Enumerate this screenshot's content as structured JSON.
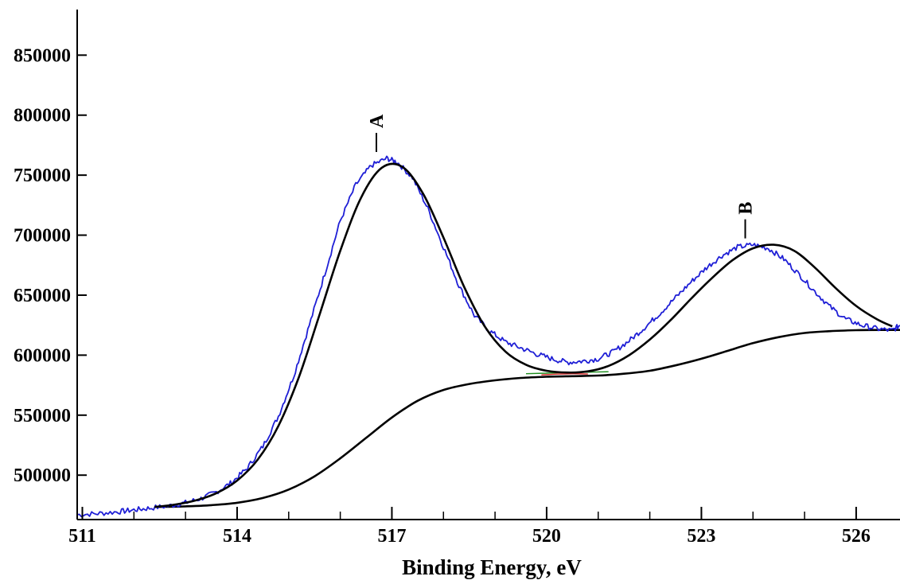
{
  "chart_data": {
    "type": "line",
    "title": "",
    "xlabel": "Binding Energy, eV",
    "ylabel": "",
    "xlim": [
      510.9,
      526.85
    ],
    "ylim": [
      463000,
      888000
    ],
    "x_ticks": [
      511,
      514,
      517,
      520,
      523,
      526
    ],
    "x_minor_step": 1,
    "y_ticks": [
      500000,
      550000,
      600000,
      650000,
      700000,
      750000,
      800000,
      850000
    ],
    "grid": false,
    "legend": "none",
    "colors": {
      "measured": "#1f1fd6",
      "fit": "#000000",
      "background": "#000000",
      "residual_green": "#1f8f1f",
      "residual_red": "#d42020"
    },
    "series": [
      {
        "key": "measured",
        "x": [
          510.9,
          511.3,
          511.7,
          512.0,
          512.3,
          512.7,
          513.0,
          513.3,
          513.6,
          513.9,
          514.2,
          514.5,
          514.8,
          515.1,
          515.4,
          515.7,
          516.0,
          516.3,
          516.6,
          516.9,
          517.1,
          517.4,
          517.7,
          518.0,
          518.3,
          518.6,
          518.9,
          519.2,
          519.5,
          519.8,
          520.1,
          520.4,
          520.7,
          521.0,
          521.3,
          521.6,
          521.9,
          522.2,
          522.5,
          522.8,
          523.1,
          523.4,
          523.7,
          524.0,
          524.3,
          524.6,
          524.9,
          525.2,
          525.5,
          525.8,
          526.1,
          526.4,
          526.7,
          526.85
        ],
        "y": [
          467000,
          468000,
          469500,
          471000,
          472500,
          474500,
          477000,
          480500,
          486000,
          494000,
          506000,
          524000,
          549000,
          583000,
          625000,
          668000,
          712000,
          742000,
          758000,
          764000,
          761000,
          748000,
          722000,
          690000,
          658000,
          633000,
          620000,
          611000,
          606000,
          601000,
          597000,
          594000,
          595000,
          597000,
          603000,
          612000,
          623000,
          635000,
          648000,
          661000,
          673000,
          683000,
          690000,
          692000,
          689000,
          680000,
          667000,
          653000,
          640000,
          630000,
          625000,
          622000,
          620500,
          625000
        ]
      },
      {
        "key": "fit",
        "x": [
          512.4,
          512.8,
          513.2,
          513.6,
          514.0,
          514.4,
          514.8,
          515.2,
          515.6,
          516.0,
          516.4,
          516.8,
          517.2,
          517.6,
          518.0,
          518.4,
          518.8,
          519.2,
          519.6,
          520.0,
          520.4,
          520.8,
          521.2,
          521.6,
          522.0,
          522.4,
          522.8,
          523.2,
          523.6,
          524.0,
          524.4,
          524.8,
          525.2,
          525.6,
          526.0,
          526.4,
          526.7
        ],
        "y": [
          473500,
          475500,
          479000,
          485000,
          495500,
          513000,
          541000,
          582000,
          634000,
          687000,
          731000,
          756000,
          757000,
          735000,
          698000,
          657000,
          624000,
          603000,
          592000,
          587000,
          585500,
          586500,
          591000,
          600000,
          613000,
          629000,
          647000,
          664000,
          679000,
          689000,
          692000,
          687000,
          673000,
          656000,
          641000,
          630000,
          624000
        ]
      },
      {
        "key": "background",
        "x": [
          512.4,
          513.0,
          513.5,
          514.0,
          514.5,
          515.0,
          515.5,
          516.0,
          516.5,
          517.0,
          517.5,
          518.0,
          518.5,
          519.0,
          519.5,
          520.0,
          520.5,
          521.0,
          521.5,
          522.0,
          522.5,
          523.0,
          523.5,
          524.0,
          524.5,
          525.0,
          525.5,
          526.0,
          526.5,
          526.85
        ],
        "y": [
          473500,
          474000,
          475000,
          477000,
          481000,
          488000,
          499000,
          514000,
          531000,
          548000,
          562000,
          571000,
          576000,
          579000,
          581000,
          582000,
          582500,
          583000,
          584500,
          587000,
          591500,
          597000,
          603500,
          610000,
          615000,
          618500,
          620000,
          620800,
          621000,
          621000
        ]
      }
    ],
    "annotations": [
      {
        "label": "A",
        "x": 516.7,
        "y": 764000
      },
      {
        "label": "B",
        "x": 523.85,
        "y": 692000
      }
    ]
  }
}
